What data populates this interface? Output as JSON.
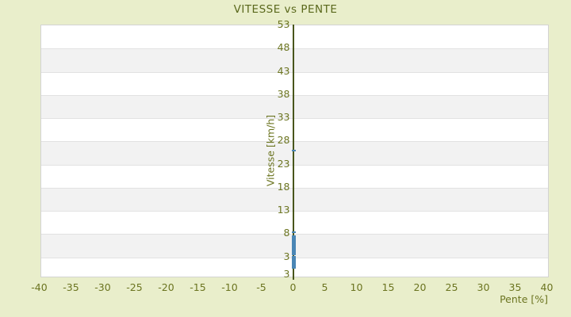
{
  "chart_data": {
    "type": "scatter",
    "title": "VITESSE vs PENTE",
    "xlabel": "Pente [%]",
    "ylabel": "Vitesse [km/h]",
    "x_ticks": [
      -40,
      -35,
      -30,
      -25,
      -20,
      -15,
      -10,
      -5,
      0,
      5,
      10,
      15,
      20,
      25,
      30,
      35,
      40
    ],
    "y_ticks": [
      53,
      48,
      43,
      38,
      33,
      28,
      23,
      18,
      13,
      8,
      3
    ],
    "y_axis_end_label": "3",
    "xlim": [
      -40,
      40
    ],
    "ylim": [
      -2,
      53
    ],
    "grid": "horizontal-bands",
    "legend": "none",
    "series": [
      {
        "name": "vitesse-vs-pente-points",
        "points": [
          {
            "pente": 0.1,
            "vitesse": 25.8
          },
          {
            "pente": 0.1,
            "vitesse": 8.2
          },
          {
            "pente": 0.1,
            "vitesse": 7.3
          },
          {
            "pente": 0.1,
            "vitesse": 7.0
          },
          {
            "pente": 0.1,
            "vitesse": 6.7
          },
          {
            "pente": 0.1,
            "vitesse": 6.4
          },
          {
            "pente": 0.1,
            "vitesse": 6.1
          },
          {
            "pente": 0.1,
            "vitesse": 5.8
          },
          {
            "pente": 0.1,
            "vitesse": 5.5
          },
          {
            "pente": 0.1,
            "vitesse": 5.1
          },
          {
            "pente": 0.1,
            "vitesse": 4.9
          },
          {
            "pente": 0.1,
            "vitesse": 4.4
          },
          {
            "pente": 0.1,
            "vitesse": 4.1
          },
          {
            "pente": 0.1,
            "vitesse": 3.8
          },
          {
            "pente": 0.1,
            "vitesse": 3.5
          },
          {
            "pente": 0.1,
            "vitesse": 2.9
          },
          {
            "pente": 0.1,
            "vitesse": 2.6
          },
          {
            "pente": 0.1,
            "vitesse": 2.3
          },
          {
            "pente": 0.1,
            "vitesse": 2.0
          },
          {
            "pente": 0.1,
            "vitesse": 1.7
          },
          {
            "pente": 0.1,
            "vitesse": 1.5
          },
          {
            "pente": 0.1,
            "vitesse": 1.2
          },
          {
            "pente": 0.1,
            "vitesse": 0.9
          },
          {
            "pente": 0.1,
            "vitesse": 0.6
          }
        ]
      }
    ],
    "colors": {
      "background": "#e9eecb",
      "plot_background": "#ffffff",
      "band": "#f2f2f2",
      "gridline": "#e2e2e2",
      "plot_border": "#d3d3d3",
      "axis_line": "#49561c",
      "text": "#6b7420",
      "title_text": "#5a681c",
      "point": "#4a86b5"
    }
  }
}
